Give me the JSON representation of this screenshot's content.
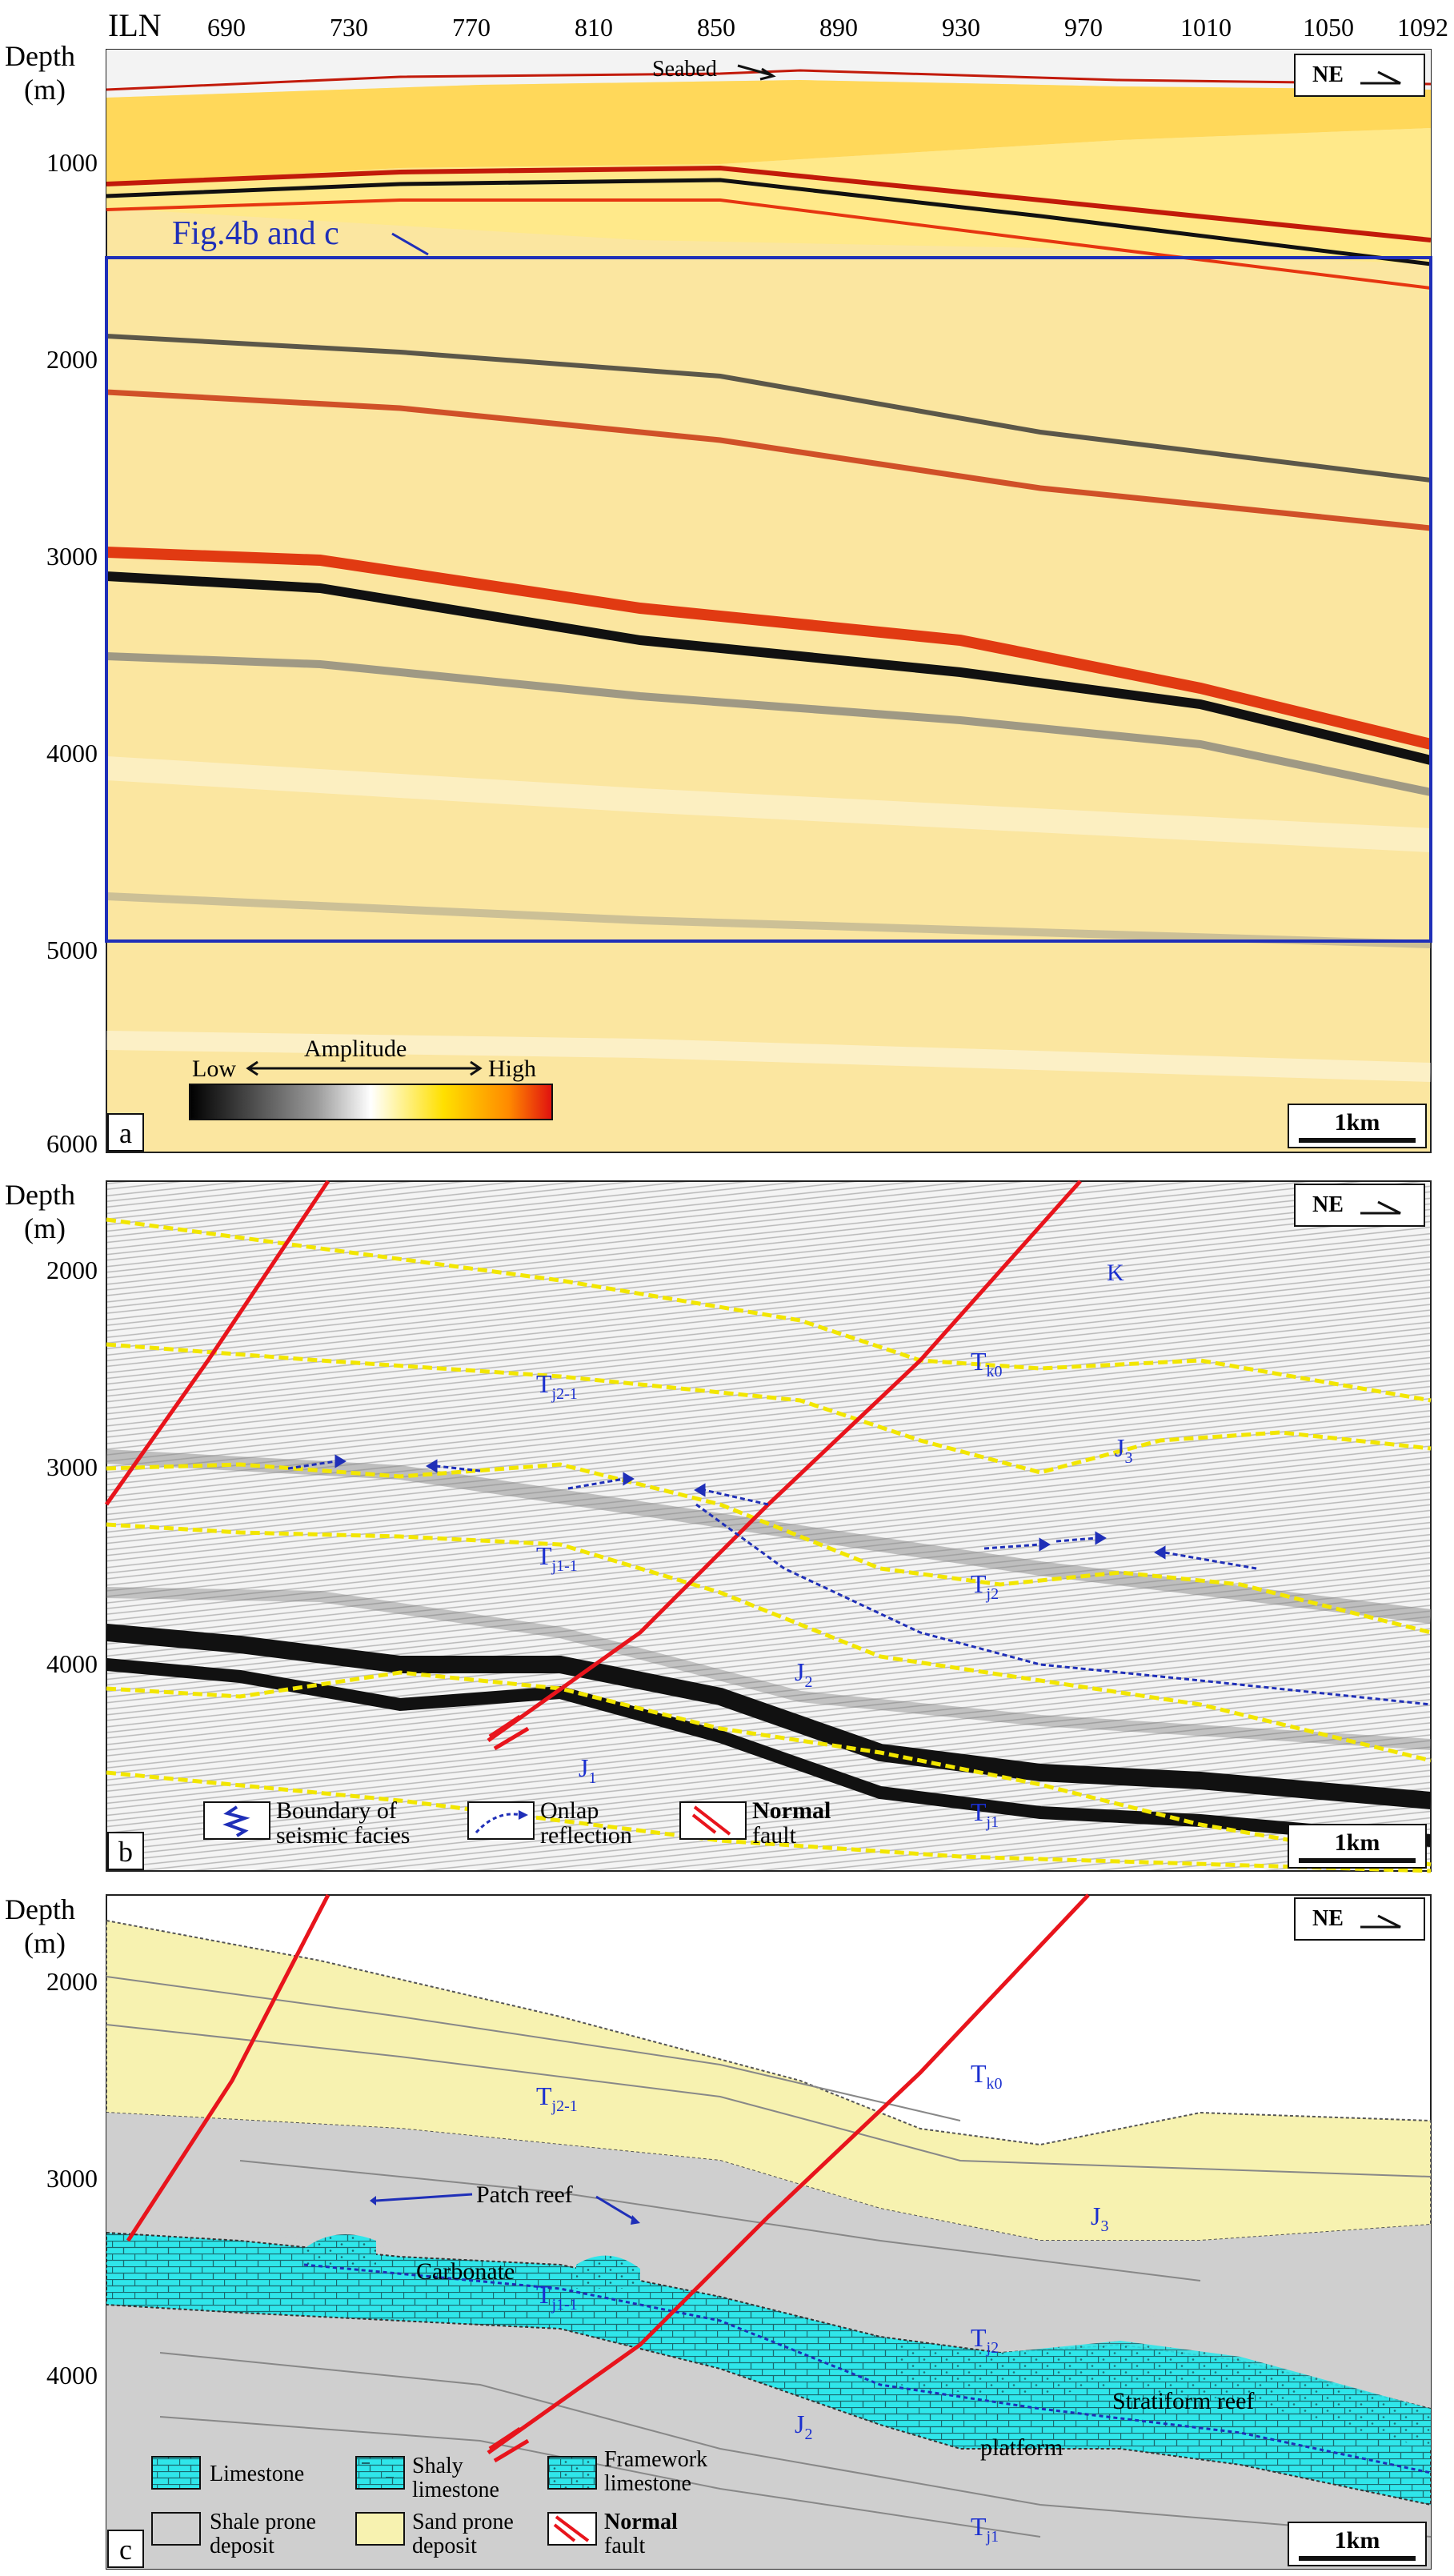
{
  "panel_a": {
    "ilnLabel": "ILN",
    "ilnTicks": [
      "690",
      "730",
      "770",
      "810",
      "850",
      "890",
      "930",
      "970",
      "1010",
      "1050",
      "1092"
    ],
    "depthTitle": "Depth",
    "depthUnit": "(m)",
    "depthTicks": [
      "1000",
      "2000",
      "3000",
      "4000",
      "5000",
      "6000"
    ],
    "seabedLabel": "Seabed",
    "figRefLabel": "Fig.4b and c",
    "compass": "NE",
    "colorbar": {
      "low": "Low",
      "title": "Amplitude",
      "high": "High"
    },
    "scale": "1km",
    "panelLetter": "a"
  },
  "panel_b": {
    "depthTitle": "Depth",
    "depthUnit": "(m)",
    "depthTicks": [
      "2000",
      "3000",
      "4000"
    ],
    "compass": "NE",
    "labels": {
      "K": "K",
      "Tk0": "T",
      "Tk0sub": "k0",
      "Tj21": "T",
      "Tj21sub": "j2-1",
      "J3": "J",
      "J3sub": "3",
      "Tj11": "T",
      "Tj11sub": "j1-1",
      "Tj2": "T",
      "Tj2sub": "j2",
      "J2": "J",
      "J2sub": "2",
      "J1": "J",
      "J1sub": "1",
      "Tj1": "T",
      "Tj1sub": "j1"
    },
    "legend": {
      "facies1": "Boundary of",
      "facies2": "seismic facies",
      "onlap1": "Onlap",
      "onlap2": "reflection",
      "fault1": "Normal",
      "fault2": "fault"
    },
    "scale": "1km",
    "panelLetter": "b"
  },
  "panel_c": {
    "depthTitle": "Depth",
    "depthUnit": "(m)",
    "depthTicks": [
      "2000",
      "3000",
      "4000"
    ],
    "compass": "NE",
    "labels": {
      "patchReef": "Patch reef",
      "carbonate": "Carbonate",
      "stratiformReef": "Stratiform reef",
      "platform": "platform",
      "Tk0": "T",
      "Tk0sub": "k0",
      "Tj21": "T",
      "Tj21sub": "j2-1",
      "J3": "J",
      "J3sub": "3",
      "Tj11": "T",
      "Tj11sub": "j1-1",
      "Tj2": "T",
      "Tj2sub": "j2",
      "J2": "J",
      "J2sub": "2",
      "Tj1": "T",
      "Tj1sub": "j1"
    },
    "legend": {
      "limestone": "Limestone",
      "shaly1": "Shaly",
      "shaly2": "limestone",
      "framework1": "Framework",
      "framework2": "limestone",
      "shale1": "Shale prone",
      "shale2": "deposit",
      "sand1": "Sand prone",
      "sand2": "deposit",
      "fault1": "Normal",
      "fault2": "fault"
    },
    "scale": "1km",
    "panelLetter": "c"
  },
  "colors": {
    "fault": "#e8141c",
    "horizon": "#f2e600",
    "blueLabel": "#1a2fd0",
    "limestone": "#2fe6ea",
    "sand": "#f7f2b0",
    "shale": "#cfcfcf",
    "frameBlue": "#1f2fb8"
  }
}
